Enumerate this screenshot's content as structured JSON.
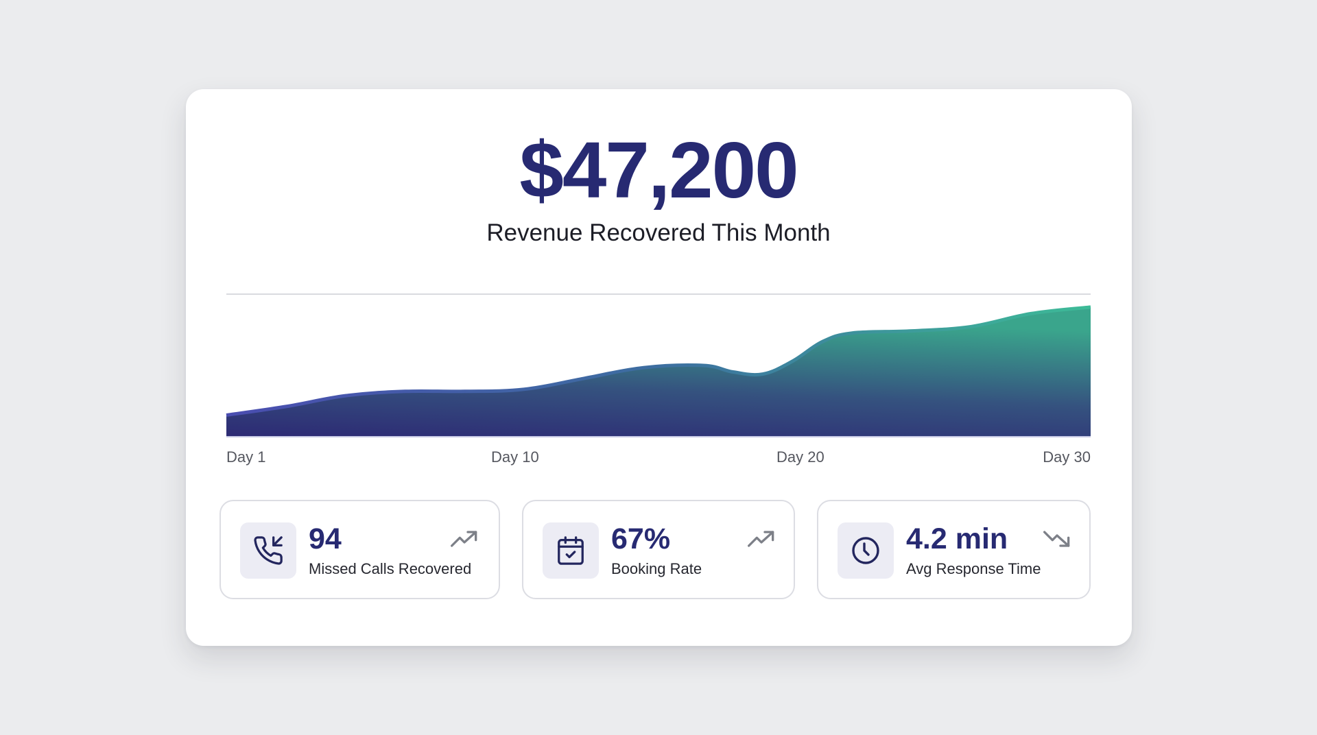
{
  "header": {
    "amount": "$47,200",
    "subtitle": "Revenue Recovered This Month"
  },
  "colors": {
    "navy": "#272a72",
    "area_bottom": "#2e2a72",
    "area_top": "#3aa58c",
    "line_start": "#4a4db0",
    "line_end": "#3dbb97",
    "trend_gray": "#7d8088",
    "icon_bg": "#ececf4"
  },
  "chart_data": {
    "type": "area",
    "title": "Revenue Recovered This Month",
    "xlabel": "",
    "ylabel": "",
    "x_tick_labels": [
      "Day 1",
      "Day 10",
      "Day 20",
      "Day 30"
    ],
    "x": [
      1,
      3,
      5,
      7,
      9,
      11,
      13,
      15,
      17,
      18,
      19,
      20,
      21,
      22,
      24,
      26,
      28,
      30
    ],
    "values": [
      10,
      14,
      19,
      21,
      21,
      22,
      27,
      32,
      33,
      30,
      29,
      35,
      44,
      48,
      49,
      51,
      57,
      60
    ],
    "grid": "single horizontal reference line",
    "legend": "none",
    "notes": "Unlabeled y-axis; values are relative heights (0 = baseline, 66 = reference gridline)."
  },
  "stats": [
    {
      "icon": "phone-incoming-icon",
      "value": "94",
      "label": "Missed Calls Recovered",
      "trend": "trend-up-icon"
    },
    {
      "icon": "calendar-check-icon",
      "value": "67%",
      "label": "Booking Rate",
      "trend": "trend-up-icon"
    },
    {
      "icon": "clock-icon",
      "value": "4.2 min",
      "label": "Avg Response Time",
      "trend": "trend-down-icon"
    }
  ]
}
